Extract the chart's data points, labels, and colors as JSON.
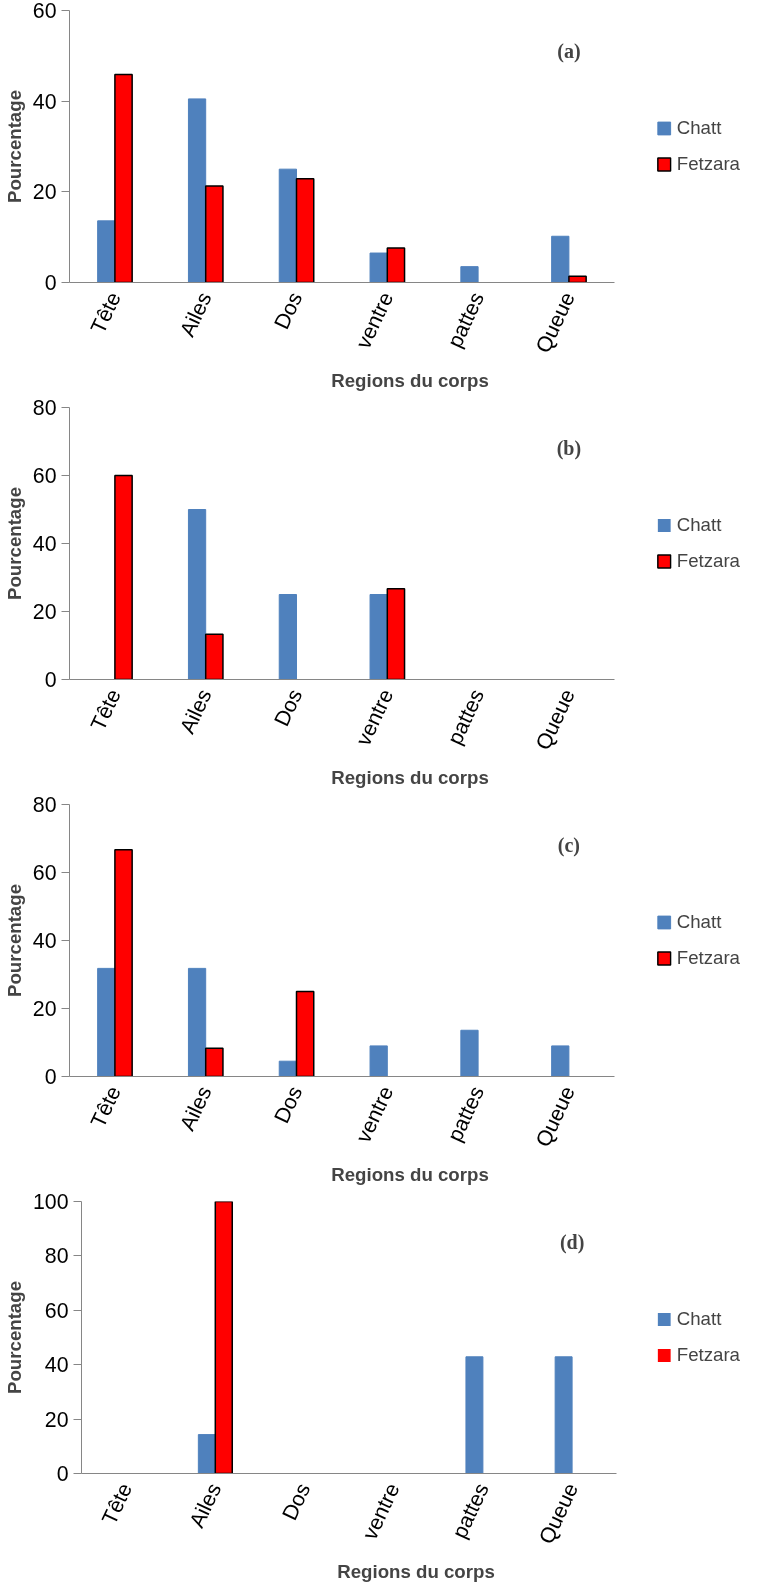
{
  "chart_data": [
    {
      "type": "bar",
      "title": "(a)",
      "xlabel": "Regions du corps",
      "ylabel": "Pourcentage",
      "categories": [
        "Tête",
        "Ailes",
        "Dos",
        "ventre",
        "pattes",
        "Queue"
      ],
      "series": [
        {
          "name": "Chatt",
          "color": "#4f81bd",
          "values": [
            13.6,
            40.5,
            25,
            6.5,
            3.5,
            10.2
          ]
        },
        {
          "name": "Fetzara",
          "color": "#ff0000",
          "values": [
            45.9,
            21.3,
            22.9,
            7.6,
            0,
            1.4
          ]
        }
      ],
      "ylim": [
        0,
        60
      ],
      "yticks": [
        0,
        20,
        40,
        60
      ],
      "grid": false,
      "legend": "right"
    },
    {
      "type": "bar",
      "title": "(b)",
      "xlabel": "Regions du corps",
      "ylabel": "Pourcentage",
      "categories": [
        "Tête",
        "Ailes",
        "Dos",
        "ventre",
        "pattes",
        "Queue"
      ],
      "series": [
        {
          "name": "Chatt",
          "color": "#4f81bd",
          "values": [
            0,
            50,
            25,
            25,
            0,
            0
          ]
        },
        {
          "name": "Fetzara",
          "color": "#ff0000",
          "values": [
            60,
            13.3,
            0,
            26.7,
            0,
            0
          ]
        }
      ],
      "ylim": [
        0,
        80
      ],
      "yticks": [
        0,
        20,
        40,
        60,
        80
      ],
      "grid": false,
      "legend": "right"
    },
    {
      "type": "bar",
      "title": "(c)",
      "xlabel": "Regions du corps",
      "ylabel": "Pourcentage",
      "categories": [
        "Tête",
        "Ailes",
        "Dos",
        "ventre",
        "pattes",
        "Queue"
      ],
      "series": [
        {
          "name": "Chatt",
          "color": "#4f81bd",
          "values": [
            31.8,
            31.8,
            4.5,
            9,
            13.6,
            9
          ]
        },
        {
          "name": "Fetzara",
          "color": "#ff0000",
          "values": [
            66.7,
            8.3,
            25,
            0,
            0,
            0
          ]
        }
      ],
      "ylim": [
        0,
        80
      ],
      "yticks": [
        0,
        20,
        40,
        60,
        80
      ],
      "grid": false,
      "legend": "right"
    },
    {
      "type": "bar",
      "title": "(d)",
      "xlabel": "Regions du corps",
      "ylabel": "Pourcentage",
      "categories": [
        "Tête",
        "Ailes",
        "Dos",
        "ventre",
        "pattes",
        "Queue"
      ],
      "series": [
        {
          "name": "Chatt",
          "color": "#4f81bd",
          "values": [
            0,
            14.3,
            0,
            0,
            42.9,
            42.9
          ]
        },
        {
          "name": "Fetzara",
          "color": "#ff0000",
          "values": [
            0,
            100,
            0,
            0,
            0,
            0
          ]
        }
      ],
      "ylim": [
        0,
        100
      ],
      "yticks": [
        0,
        20,
        40,
        60,
        80,
        100
      ],
      "grid": false,
      "legend": "right"
    }
  ]
}
